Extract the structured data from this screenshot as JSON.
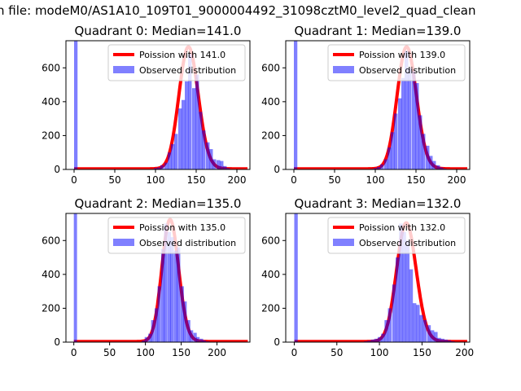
{
  "chart_data": {
    "suptitle": "n file: modeM0/AS1A10_109T01_9000004492_31098cztM0_level2_quad_clean",
    "type": "bar",
    "legend_placement": "top-right",
    "legend": {
      "observed": "Observed distribution"
    },
    "yticks": [
      0,
      200,
      400,
      600
    ],
    "xticks": [
      0,
      50,
      100,
      150,
      200
    ],
    "subplots": [
      {
        "title": "Quadrant 0: Median=141.0",
        "poisson_label": "Poission with 141.0",
        "lambda": 141,
        "poisson_peak": 720,
        "xlim": [
          -10,
          216
        ],
        "ylim": [
          0,
          760
        ],
        "zero_bin_count": 2000,
        "bin_width": 4.26,
        "bins_x": [
          94,
          98,
          102,
          106,
          111,
          115,
          119,
          123,
          128,
          132,
          136,
          140,
          145,
          149,
          153,
          157,
          162,
          166,
          170,
          175,
          179,
          183,
          187
        ],
        "counts": [
          3,
          8,
          12,
          25,
          40,
          100,
          150,
          210,
          360,
          410,
          520,
          680,
          480,
          560,
          340,
          230,
          160,
          120,
          60,
          55,
          50,
          20,
          8
        ]
      },
      {
        "title": "Quadrant 1: Median=139.0",
        "poisson_label": "Poission with 139.0",
        "lambda": 139,
        "poisson_peak": 720,
        "xlim": [
          -10,
          216
        ],
        "ylim": [
          0,
          760
        ],
        "zero_bin_count": 2000,
        "bin_width": 4.26,
        "bins_x": [
          94,
          98,
          102,
          106,
          111,
          115,
          119,
          123,
          128,
          132,
          136,
          140,
          145,
          149,
          153,
          157,
          162,
          166,
          170,
          175,
          179,
          183
        ],
        "counts": [
          4,
          8,
          15,
          30,
          60,
          130,
          220,
          330,
          420,
          540,
          700,
          600,
          580,
          510,
          320,
          210,
          140,
          80,
          50,
          25,
          12,
          5
        ]
      },
      {
        "title": "Quadrant 2: Median=135.0",
        "poisson_label": "Poission with 135.0",
        "lambda": 135,
        "poisson_peak": 720,
        "xlim": [
          -11,
          246
        ],
        "ylim": [
          0,
          760
        ],
        "zero_bin_count": 2000,
        "bin_width": 4.5,
        "bins_x": [
          95,
          99,
          104,
          108,
          113,
          117,
          122,
          126,
          131,
          135,
          140,
          144,
          149,
          153,
          158,
          162,
          167,
          171,
          176,
          180,
          185
        ],
        "counts": [
          10,
          30,
          50,
          130,
          200,
          330,
          550,
          700,
          650,
          620,
          540,
          560,
          330,
          240,
          130,
          70,
          55,
          30,
          20,
          10,
          5
        ]
      },
      {
        "title": "Quadrant 3: Median=132.0",
        "poisson_label": "Poission with 132.0",
        "lambda": 132,
        "poisson_peak": 700,
        "xlim": [
          -10,
          206
        ],
        "ylim": [
          0,
          760
        ],
        "zero_bin_count": 2000,
        "bin_width": 4.1,
        "bins_x": [
          82,
          86,
          90,
          94,
          98,
          102,
          106,
          110,
          115,
          119,
          123,
          127,
          131,
          135,
          139,
          143,
          147,
          151,
          156,
          160,
          164,
          168,
          172,
          176,
          180,
          184
        ],
        "counts": [
          5,
          8,
          15,
          20,
          30,
          50,
          130,
          200,
          340,
          500,
          700,
          650,
          600,
          430,
          230,
          220,
          160,
          130,
          100,
          70,
          60,
          25,
          20,
          15,
          10,
          5
        ]
      }
    ]
  }
}
